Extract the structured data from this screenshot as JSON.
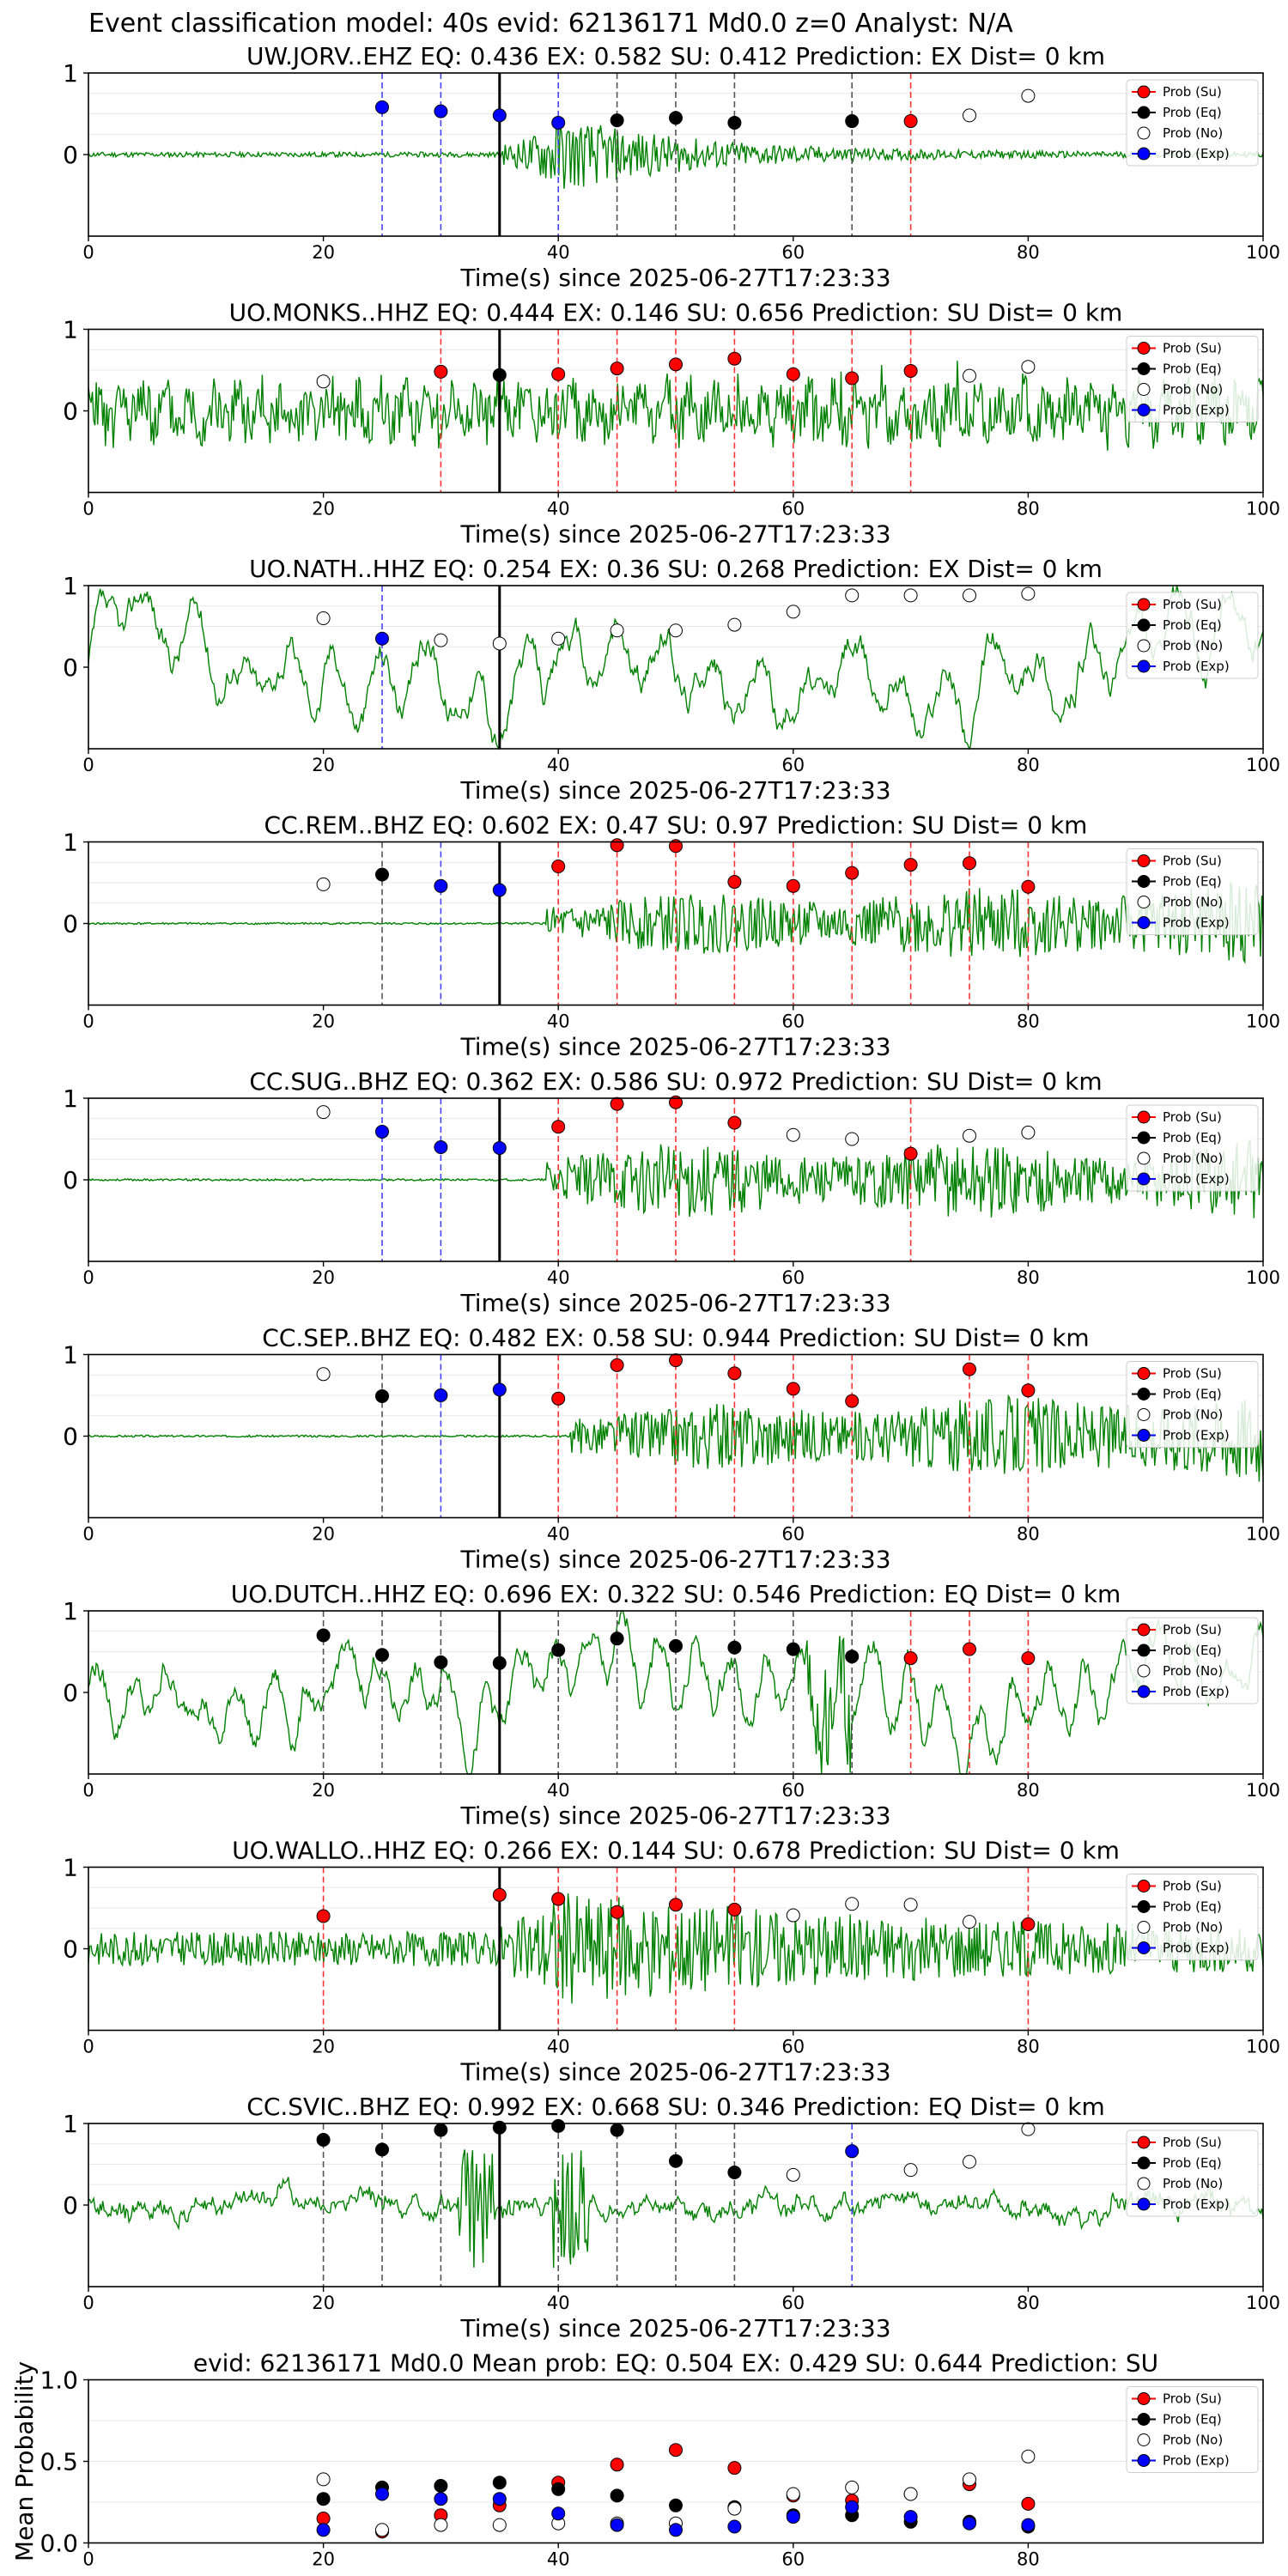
{
  "figure": {
    "title": "Event classification model: 40s evid: 62136171 Md0.0 z=0 Analyst: N/A"
  },
  "legend_labels": [
    "Prob (Su)",
    "Prob (Eq)",
    "Prob (No)",
    "Prob (Exp)"
  ],
  "colors": {
    "su": "#ff0000",
    "eq": "#000000",
    "no": "#ffffff",
    "exp": "#0000ff",
    "waveform": "#008000",
    "onset": "#000000",
    "vline_su": "#ff3333",
    "vline_eq": "#555555",
    "vline_exp": "#4444ff"
  },
  "chart_data": [
    {
      "type": "line",
      "title": "UW.JORV..EHZ   EQ: 0.436  EX: 0.582  SU: 0.412   Prediction: EX    Dist= 0 km",
      "xlabel": "Time(s) since 2025-06-27T17:23:33",
      "xlim": [
        0,
        100
      ],
      "ylim": [
        -1,
        1
      ],
      "xticks": [
        0,
        20,
        40,
        60,
        80,
        100
      ],
      "yticks": [
        0,
        1
      ],
      "onset": 35,
      "legend": "top-right",
      "waveform": {
        "style": "burst",
        "amp": 0.05,
        "onset": 35,
        "peak": 0.75,
        "peak_at": 40,
        "decay": 12,
        "seed": 11
      },
      "points": [
        {
          "t": 25,
          "p": 0.58,
          "c": "exp"
        },
        {
          "t": 30,
          "p": 0.53,
          "c": "exp"
        },
        {
          "t": 35,
          "p": 0.48,
          "c": "exp"
        },
        {
          "t": 40,
          "p": 0.39,
          "c": "exp"
        },
        {
          "t": 45,
          "p": 0.42,
          "c": "eq"
        },
        {
          "t": 50,
          "p": 0.45,
          "c": "eq"
        },
        {
          "t": 55,
          "p": 0.39,
          "c": "eq"
        },
        {
          "t": 65,
          "p": 0.41,
          "c": "eq"
        },
        {
          "t": 70,
          "p": 0.41,
          "c": "su"
        },
        {
          "t": 75,
          "p": 0.48,
          "c": "no"
        },
        {
          "t": 80,
          "p": 0.72,
          "c": "no"
        }
      ]
    },
    {
      "type": "line",
      "title": "UO.MONKS..HHZ   EQ: 0.444  EX: 0.146  SU: 0.656   Prediction: SU    Dist= 0 km",
      "xlabel": "Time(s) since 2025-06-27T17:23:33",
      "xlim": [
        0,
        100
      ],
      "ylim": [
        -1,
        1
      ],
      "xticks": [
        0,
        20,
        40,
        60,
        80,
        100
      ],
      "yticks": [
        0,
        1
      ],
      "onset": 35,
      "legend": "top-right",
      "waveform": {
        "style": "noise",
        "amp": 0.55,
        "spikes": 0.35,
        "seed": 23
      },
      "points": [
        {
          "t": 20,
          "p": 0.36,
          "c": "no"
        },
        {
          "t": 30,
          "p": 0.48,
          "c": "su"
        },
        {
          "t": 35,
          "p": 0.44,
          "c": "eq"
        },
        {
          "t": 40,
          "p": 0.45,
          "c": "su"
        },
        {
          "t": 45,
          "p": 0.52,
          "c": "su"
        },
        {
          "t": 50,
          "p": 0.57,
          "c": "su"
        },
        {
          "t": 55,
          "p": 0.64,
          "c": "su"
        },
        {
          "t": 60,
          "p": 0.45,
          "c": "su"
        },
        {
          "t": 65,
          "p": 0.4,
          "c": "su"
        },
        {
          "t": 70,
          "p": 0.49,
          "c": "su"
        },
        {
          "t": 75,
          "p": 0.43,
          "c": "no"
        },
        {
          "t": 80,
          "p": 0.54,
          "c": "no"
        }
      ]
    },
    {
      "type": "line",
      "title": "UO.NATH..HHZ   EQ: 0.254  EX: 0.36  SU: 0.268   Prediction: EX    Dist= 0 km",
      "xlabel": "Time(s) since 2025-06-27T17:23:33",
      "xlim": [
        0,
        100
      ],
      "ylim": [
        -1,
        1
      ],
      "xticks": [
        0,
        20,
        40,
        60,
        80,
        100
      ],
      "yticks": [
        0,
        1
      ],
      "onset": 35,
      "legend": "top-right",
      "waveform": {
        "style": "smooth",
        "amp": 0.55,
        "period": 40,
        "seed": 37
      },
      "points": [
        {
          "t": 20,
          "p": 0.6,
          "c": "no"
        },
        {
          "t": 25,
          "p": 0.35,
          "c": "exp"
        },
        {
          "t": 30,
          "p": 0.33,
          "c": "no"
        },
        {
          "t": 35,
          "p": 0.29,
          "c": "no"
        },
        {
          "t": 40,
          "p": 0.35,
          "c": "no"
        },
        {
          "t": 45,
          "p": 0.45,
          "c": "no"
        },
        {
          "t": 50,
          "p": 0.45,
          "c": "no"
        },
        {
          "t": 55,
          "p": 0.52,
          "c": "no"
        },
        {
          "t": 60,
          "p": 0.68,
          "c": "no"
        },
        {
          "t": 65,
          "p": 0.88,
          "c": "no"
        },
        {
          "t": 70,
          "p": 0.88,
          "c": "no"
        },
        {
          "t": 75,
          "p": 0.88,
          "c": "no"
        },
        {
          "t": 80,
          "p": 0.9,
          "c": "no"
        }
      ]
    },
    {
      "type": "line",
      "title": "CC.REM..BHZ   EQ: 0.602  EX: 0.47  SU: 0.97   Prediction: SU    Dist= 0 km",
      "xlabel": "Time(s) since 2025-06-27T17:23:33",
      "xlim": [
        0,
        100
      ],
      "ylim": [
        -1,
        1
      ],
      "xticks": [
        0,
        20,
        40,
        60,
        80,
        100
      ],
      "yticks": [
        0,
        1
      ],
      "onset": 35,
      "legend": "top-right",
      "waveform": {
        "style": "signal",
        "amp": 0.02,
        "onset": 39,
        "level": 0.55,
        "grow": 0.5,
        "seed": 41
      },
      "points": [
        {
          "t": 20,
          "p": 0.48,
          "c": "no"
        },
        {
          "t": 25,
          "p": 0.6,
          "c": "eq"
        },
        {
          "t": 30,
          "p": 0.46,
          "c": "exp"
        },
        {
          "t": 35,
          "p": 0.41,
          "c": "exp"
        },
        {
          "t": 40,
          "p": 0.7,
          "c": "su"
        },
        {
          "t": 45,
          "p": 0.96,
          "c": "su"
        },
        {
          "t": 50,
          "p": 0.95,
          "c": "su"
        },
        {
          "t": 55,
          "p": 0.51,
          "c": "su"
        },
        {
          "t": 60,
          "p": 0.46,
          "c": "su"
        },
        {
          "t": 65,
          "p": 0.62,
          "c": "su"
        },
        {
          "t": 70,
          "p": 0.72,
          "c": "su"
        },
        {
          "t": 75,
          "p": 0.74,
          "c": "su"
        },
        {
          "t": 80,
          "p": 0.45,
          "c": "su"
        }
      ]
    },
    {
      "type": "line",
      "title": "CC.SUG..BHZ   EQ: 0.362  EX: 0.586  SU: 0.972   Prediction: SU    Dist= 0 km",
      "xlabel": "Time(s) since 2025-06-27T17:23:33",
      "xlim": [
        0,
        100
      ],
      "ylim": [
        -1,
        1
      ],
      "xticks": [
        0,
        20,
        40,
        60,
        80,
        100
      ],
      "yticks": [
        0,
        1
      ],
      "onset": 35,
      "legend": "top-right",
      "waveform": {
        "style": "signal",
        "amp": 0.02,
        "onset": 39,
        "level": 0.75,
        "grow": 0.1,
        "seed": 53
      },
      "points": [
        {
          "t": 20,
          "p": 0.83,
          "c": "no"
        },
        {
          "t": 25,
          "p": 0.59,
          "c": "exp"
        },
        {
          "t": 30,
          "p": 0.4,
          "c": "exp"
        },
        {
          "t": 35,
          "p": 0.39,
          "c": "exp"
        },
        {
          "t": 40,
          "p": 0.65,
          "c": "su"
        },
        {
          "t": 45,
          "p": 0.93,
          "c": "su"
        },
        {
          "t": 50,
          "p": 0.95,
          "c": "su"
        },
        {
          "t": 55,
          "p": 0.7,
          "c": "su"
        },
        {
          "t": 60,
          "p": 0.55,
          "c": "no"
        },
        {
          "t": 65,
          "p": 0.5,
          "c": "no"
        },
        {
          "t": 70,
          "p": 0.32,
          "c": "su"
        },
        {
          "t": 75,
          "p": 0.54,
          "c": "no"
        },
        {
          "t": 80,
          "p": 0.58,
          "c": "no"
        }
      ]
    },
    {
      "type": "line",
      "title": "CC.SEP..BHZ   EQ: 0.482  EX: 0.58  SU: 0.944   Prediction: SU    Dist= 0 km",
      "xlabel": "Time(s) since 2025-06-27T17:23:33",
      "xlim": [
        0,
        100
      ],
      "ylim": [
        -1,
        1
      ],
      "xticks": [
        0,
        20,
        40,
        60,
        80,
        100
      ],
      "yticks": [
        0,
        1
      ],
      "onset": 35,
      "legend": "top-right",
      "waveform": {
        "style": "signal",
        "amp": 0.02,
        "onset": 41,
        "level": 0.6,
        "grow": 0.6,
        "seed": 67
      },
      "points": [
        {
          "t": 20,
          "p": 0.76,
          "c": "no"
        },
        {
          "t": 25,
          "p": 0.49,
          "c": "eq"
        },
        {
          "t": 30,
          "p": 0.5,
          "c": "exp"
        },
        {
          "t": 35,
          "p": 0.57,
          "c": "exp"
        },
        {
          "t": 40,
          "p": 0.46,
          "c": "su"
        },
        {
          "t": 45,
          "p": 0.87,
          "c": "su"
        },
        {
          "t": 50,
          "p": 0.93,
          "c": "su"
        },
        {
          "t": 55,
          "p": 0.77,
          "c": "su"
        },
        {
          "t": 60,
          "p": 0.58,
          "c": "su"
        },
        {
          "t": 65,
          "p": 0.43,
          "c": "su"
        },
        {
          "t": 75,
          "p": 0.82,
          "c": "su"
        },
        {
          "t": 80,
          "p": 0.56,
          "c": "su"
        }
      ]
    },
    {
      "type": "line",
      "title": "UO.DUTCH..HHZ   EQ: 0.696  EX: 0.322  SU: 0.546   Prediction: EQ    Dist= 0 km",
      "xlabel": "Time(s) since 2025-06-27T17:23:33",
      "xlim": [
        0,
        100
      ],
      "ylim": [
        -1,
        1
      ],
      "xticks": [
        0,
        20,
        40,
        60,
        80,
        100
      ],
      "yticks": [
        0,
        1
      ],
      "onset": 35,
      "legend": "top-right",
      "waveform": {
        "style": "smooth",
        "amp": 0.55,
        "period": 30,
        "spike_at": 63,
        "seed": 79
      },
      "points": [
        {
          "t": 20,
          "p": 0.7,
          "c": "eq"
        },
        {
          "t": 25,
          "p": 0.46,
          "c": "eq"
        },
        {
          "t": 30,
          "p": 0.37,
          "c": "eq"
        },
        {
          "t": 35,
          "p": 0.36,
          "c": "eq"
        },
        {
          "t": 40,
          "p": 0.52,
          "c": "eq"
        },
        {
          "t": 45,
          "p": 0.66,
          "c": "eq"
        },
        {
          "t": 50,
          "p": 0.57,
          "c": "eq"
        },
        {
          "t": 55,
          "p": 0.55,
          "c": "eq"
        },
        {
          "t": 60,
          "p": 0.53,
          "c": "eq"
        },
        {
          "t": 65,
          "p": 0.44,
          "c": "eq"
        },
        {
          "t": 70,
          "p": 0.42,
          "c": "su"
        },
        {
          "t": 75,
          "p": 0.53,
          "c": "su"
        },
        {
          "t": 80,
          "p": 0.42,
          "c": "su"
        }
      ]
    },
    {
      "type": "line",
      "title": "UO.WALLO..HHZ   EQ: 0.266  EX: 0.144  SU: 0.678   Prediction: SU    Dist= 0 km",
      "xlabel": "Time(s) since 2025-06-27T17:23:33",
      "xlim": [
        0,
        100
      ],
      "ylim": [
        -1,
        1
      ],
      "xticks": [
        0,
        20,
        40,
        60,
        80,
        100
      ],
      "yticks": [
        0,
        1
      ],
      "onset": 35,
      "legend": "top-right",
      "waveform": {
        "style": "burst",
        "amp": 0.35,
        "onset": 35,
        "peak": 0.85,
        "peak_at": 40,
        "decay": 30,
        "seed": 83
      },
      "points": [
        {
          "t": 20,
          "p": 0.4,
          "c": "su"
        },
        {
          "t": 35,
          "p": 0.66,
          "c": "su"
        },
        {
          "t": 40,
          "p": 0.61,
          "c": "su"
        },
        {
          "t": 45,
          "p": 0.45,
          "c": "su"
        },
        {
          "t": 50,
          "p": 0.54,
          "c": "su"
        },
        {
          "t": 55,
          "p": 0.48,
          "c": "su"
        },
        {
          "t": 60,
          "p": 0.41,
          "c": "no"
        },
        {
          "t": 65,
          "p": 0.55,
          "c": "no"
        },
        {
          "t": 70,
          "p": 0.54,
          "c": "no"
        },
        {
          "t": 75,
          "p": 0.33,
          "c": "no"
        },
        {
          "t": 80,
          "p": 0.3,
          "c": "su"
        }
      ]
    },
    {
      "type": "line",
      "title": "CC.SVIC..BHZ   EQ: 0.992  EX: 0.668  SU: 0.346   Prediction: EQ    Dist= 0 km",
      "xlabel": "Time(s) since 2025-06-27T17:23:33",
      "xlim": [
        0,
        100
      ],
      "ylim": [
        -1,
        1
      ],
      "xticks": [
        0,
        20,
        40,
        60,
        80,
        100
      ],
      "yticks": [
        0,
        1
      ],
      "onset": 35,
      "legend": "top-right",
      "waveform": {
        "style": "spiky",
        "amp": 0.12,
        "spikes_at": [
          33,
          41
        ],
        "seed": 97
      },
      "points": [
        {
          "t": 20,
          "p": 0.8,
          "c": "eq"
        },
        {
          "t": 25,
          "p": 0.68,
          "c": "eq"
        },
        {
          "t": 30,
          "p": 0.92,
          "c": "eq"
        },
        {
          "t": 35,
          "p": 0.95,
          "c": "eq"
        },
        {
          "t": 40,
          "p": 0.97,
          "c": "eq"
        },
        {
          "t": 45,
          "p": 0.92,
          "c": "eq"
        },
        {
          "t": 50,
          "p": 0.54,
          "c": "eq"
        },
        {
          "t": 55,
          "p": 0.4,
          "c": "eq"
        },
        {
          "t": 60,
          "p": 0.37,
          "c": "no"
        },
        {
          "t": 65,
          "p": 0.66,
          "c": "exp"
        },
        {
          "t": 70,
          "p": 0.43,
          "c": "no"
        },
        {
          "t": 75,
          "p": 0.53,
          "c": "no"
        },
        {
          "t": 80,
          "p": 0.93,
          "c": "no"
        }
      ]
    },
    {
      "type": "scatter",
      "title": "evid: 62136171  Md0.0   Mean prob:    EQ: 0.504  EX: 0.429  SU: 0.644   Prediction: SU",
      "xlabel": "",
      "ylabel": "Mean Probability",
      "xlim": [
        0,
        100
      ],
      "ylim": [
        0,
        1
      ],
      "xticks": [
        0,
        20,
        40,
        60,
        80
      ],
      "yticks": [
        0.0,
        0.5,
        1.0
      ],
      "ytick_labels": [
        "0.0",
        "0.5",
        "1.0"
      ],
      "legend": "top-right",
      "x": [
        20,
        25,
        30,
        35,
        40,
        45,
        50,
        55,
        60,
        65,
        70,
        75,
        80
      ],
      "series": [
        {
          "name": "Prob (Su)",
          "c": "su",
          "values": [
            0.15,
            0.07,
            0.17,
            0.23,
            0.37,
            0.48,
            0.57,
            0.46,
            0.29,
            0.26,
            0.3,
            0.36,
            0.24
          ]
        },
        {
          "name": "Prob (Eq)",
          "c": "eq",
          "values": [
            0.27,
            0.34,
            0.35,
            0.37,
            0.33,
            0.29,
            0.23,
            0.22,
            0.17,
            0.17,
            0.13,
            0.13,
            0.1
          ]
        },
        {
          "name": "Prob (No)",
          "c": "no",
          "values": [
            0.39,
            0.08,
            0.11,
            0.11,
            0.12,
            0.12,
            0.12,
            0.21,
            0.3,
            0.34,
            0.3,
            0.39,
            0.53
          ]
        },
        {
          "name": "Prob (Exp)",
          "c": "exp",
          "values": [
            0.08,
            0.3,
            0.27,
            0.27,
            0.18,
            0.11,
            0.08,
            0.1,
            0.16,
            0.22,
            0.16,
            0.12,
            0.11
          ]
        }
      ]
    }
  ]
}
